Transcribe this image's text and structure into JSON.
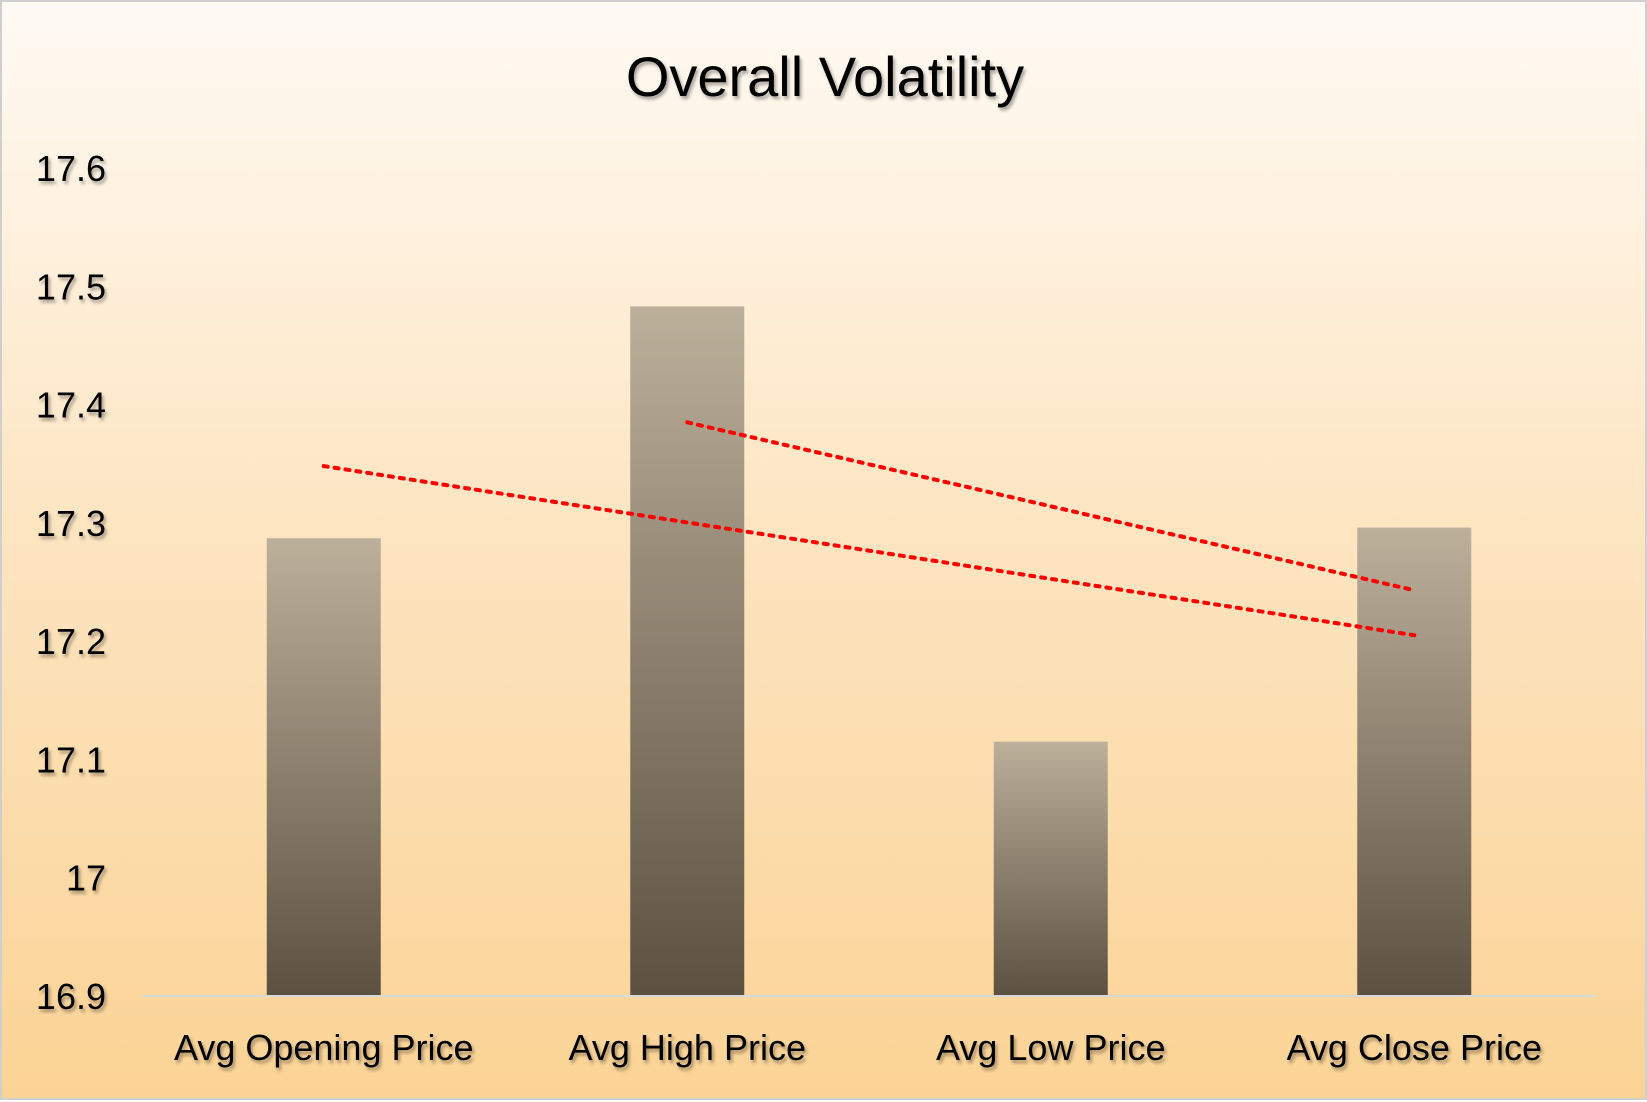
{
  "chart_data": {
    "type": "bar",
    "title": "Overall Volatility",
    "xlabel": "",
    "ylabel": "",
    "ylim": [
      16.9,
      17.6
    ],
    "yticks": [
      "16.9",
      "17",
      "17.1",
      "17.2",
      "17.3",
      "17.4",
      "17.5",
      "17.6"
    ],
    "categories": [
      "Avg Opening Price",
      "Avg High Price",
      "Avg Low Price",
      "Avg Close Price"
    ],
    "values": [
      17.287,
      17.483,
      17.115,
      17.296
    ],
    "grid": false,
    "legend": "none",
    "trendlines": [
      {
        "style": "dotted",
        "color": "#ff0000",
        "start": [
          1,
          17.348
        ],
        "end": [
          4,
          17.205
        ]
      },
      {
        "style": "dotted",
        "color": "#ff0000",
        "start": [
          2,
          17.385
        ],
        "end": [
          4,
          17.243
        ]
      }
    ],
    "colors": {
      "bar_top": "#bcb09b",
      "bar_bottom": "#5c5040",
      "trendline": "#ff0000",
      "axis": "#d9d9d9"
    }
  }
}
